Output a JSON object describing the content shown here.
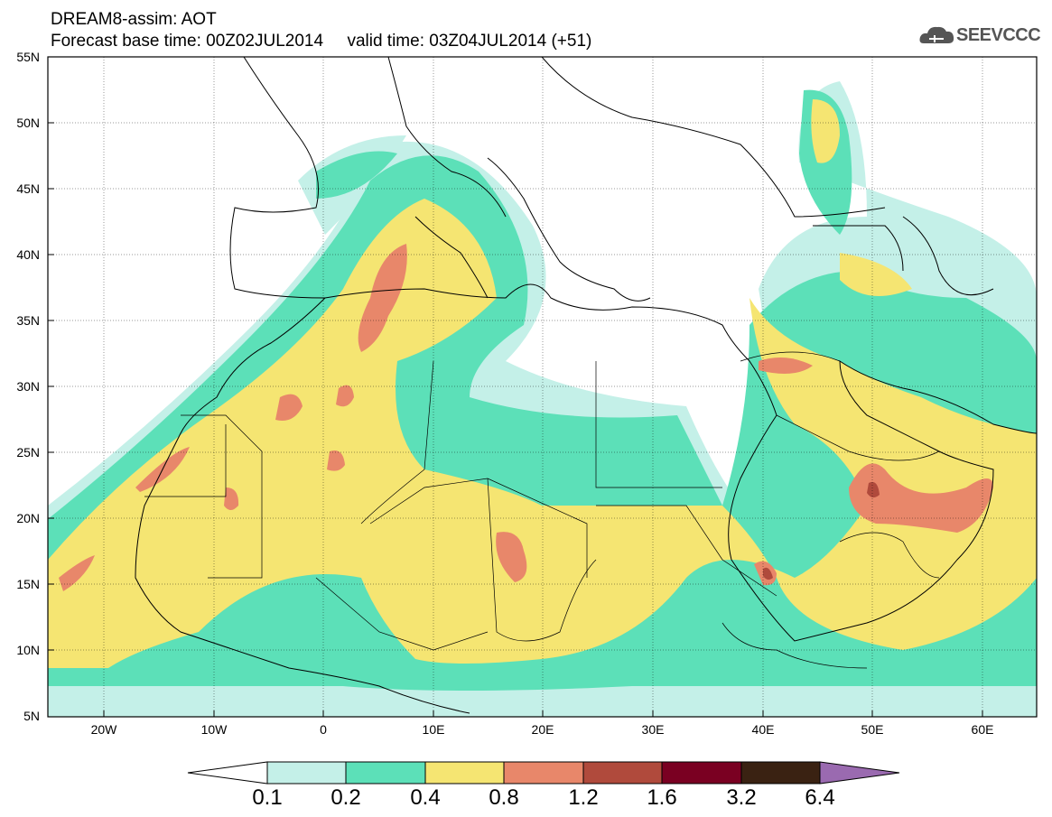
{
  "header": {
    "title_line1": "DREAM8-assim: AOT",
    "title_line2": "Forecast base time: 00Z02JUL2014     valid time: 03Z04JUL2014 (+51)"
  },
  "logo": {
    "text": "SEEVCCC",
    "icon": "cloud-icon"
  },
  "map": {
    "lat_labels": [
      "55N",
      "50N",
      "45N",
      "40N",
      "35N",
      "30N",
      "25N",
      "20N",
      "15N",
      "10N",
      "5N"
    ],
    "lon_labels": [
      "20W",
      "10W",
      "0",
      "10E",
      "20E",
      "30E",
      "40E",
      "50E",
      "60E"
    ]
  },
  "colorbar": {
    "labels": [
      "0.1",
      "0.2",
      "0.4",
      "0.8",
      "1.2",
      "1.6",
      "3.2",
      "6.4"
    ],
    "colors": [
      "#c4f0e8",
      "#5ce0b8",
      "#f5e572",
      "#e8876a",
      "#b04a3c",
      "#7a0022",
      "#3a2212",
      "#9a6ab0"
    ]
  }
}
